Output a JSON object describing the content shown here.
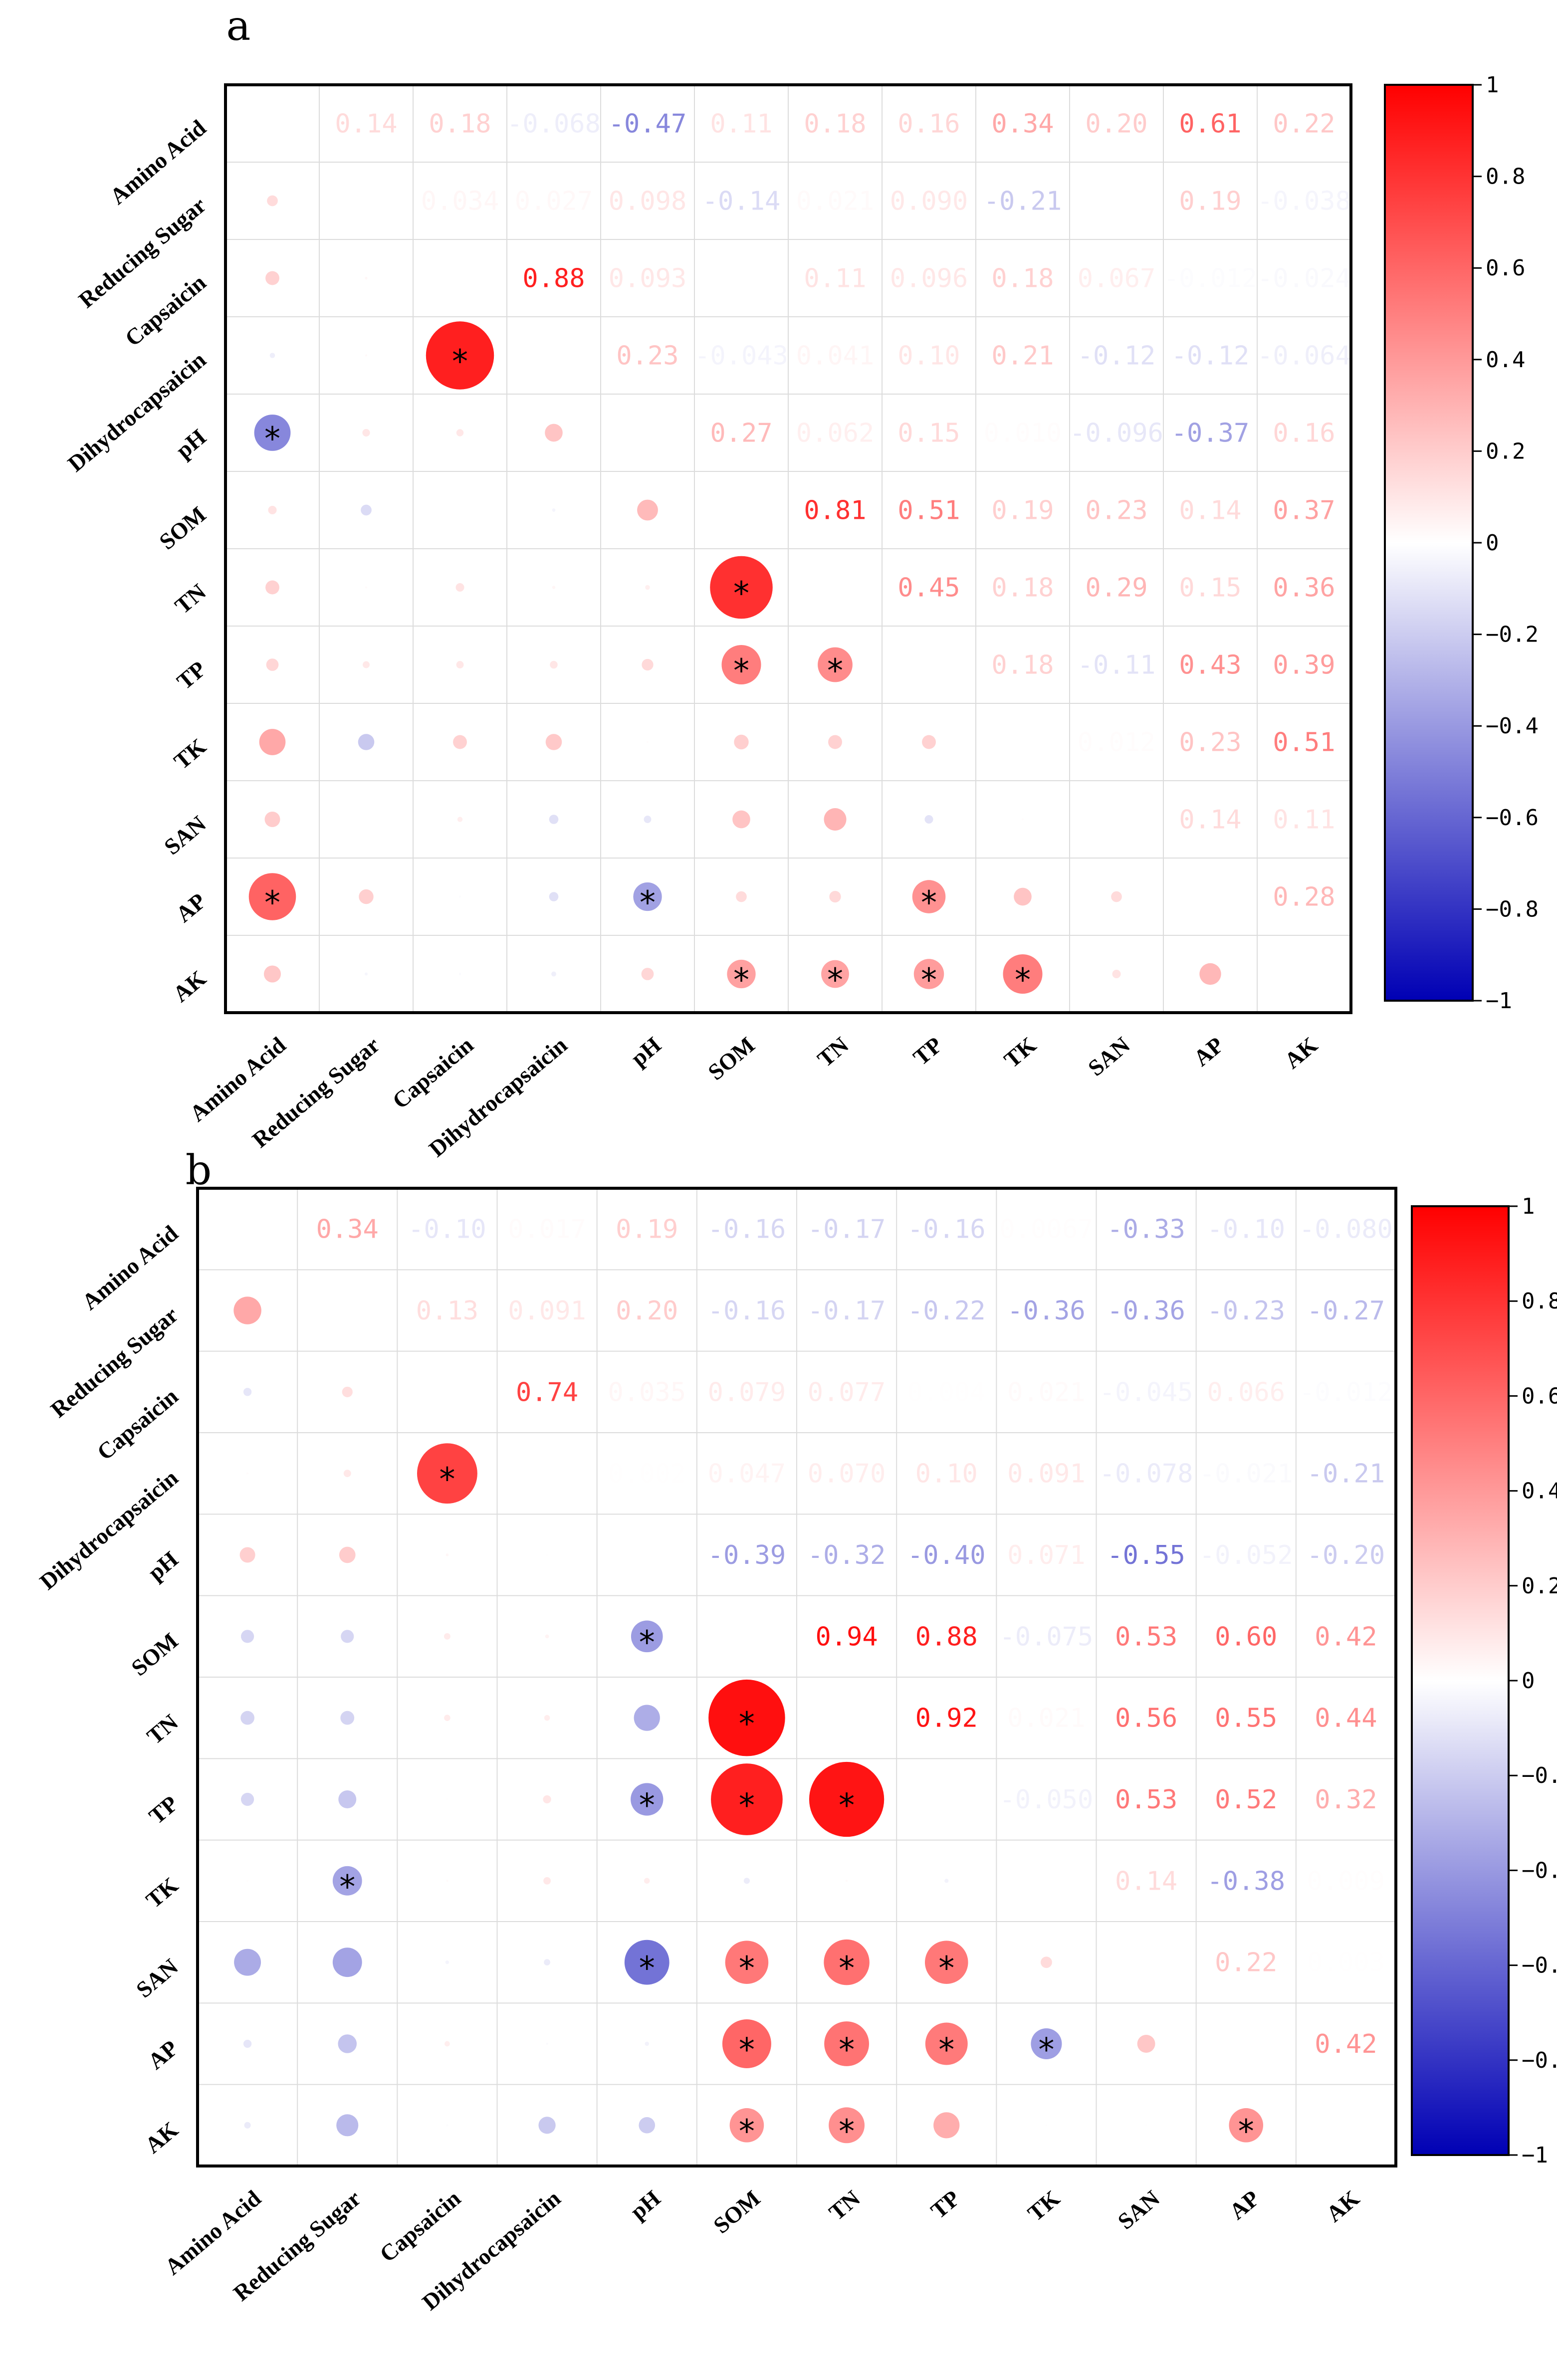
{
  "chart_data": [
    {
      "type": "heatmap",
      "panel_label": "a",
      "variables": [
        "Amino Acid",
        "Reducing Sugar",
        "Capsaicin",
        "Dihydrocapsaicin",
        "pH",
        "SOM",
        "TN",
        "TP",
        "TK",
        "SAN",
        "AP",
        "AK"
      ],
      "x_tick_labels": [
        "Amino Acid",
        "Reducing Sugar",
        "Capsaicin",
        "Dihydrocapsaicin",
        "pH",
        "SOM",
        "TN",
        "TP",
        "TK",
        "SAN",
        "AP",
        "AK"
      ],
      "y_tick_labels": [
        "Amino Acid",
        "Reducing Sugar",
        "Capsaicin",
        "Dihydrocapsaicin",
        "pH",
        "SOM",
        "TN",
        "TP",
        "TK",
        "SAN",
        "AP",
        "AK"
      ],
      "upper_labels": [
        [
          "",
          "0.14",
          "0.18",
          "-0.068",
          "-0.47",
          "0.11",
          "0.18",
          "0.16",
          "0.34",
          "0.20",
          "0.61",
          "0.22"
        ],
        [
          "",
          "",
          "0.034",
          "0.027",
          "0.098",
          "-0.14",
          "0.021",
          "0.090",
          "-0.21",
          "",
          "0.19",
          "-0.038"
        ],
        [
          "",
          "",
          "",
          "0.88",
          "0.093",
          "",
          "0.11",
          "0.096",
          "0.18",
          "0.067",
          "-0.012",
          "-0.024"
        ],
        [
          "",
          "",
          "",
          "",
          "0.23",
          "-0.043",
          "0.041",
          "0.10",
          "0.21",
          "-0.12",
          "-0.12",
          "-0.064"
        ],
        [
          "",
          "",
          "",
          "",
          "",
          "0.27",
          "0.062",
          "0.15",
          "0.010",
          "-0.096",
          "-0.37",
          "0.16"
        ],
        [
          "",
          "",
          "",
          "",
          "",
          "",
          "0.81",
          "0.51",
          "0.19",
          "0.23",
          "0.14",
          "0.37"
        ],
        [
          "",
          "",
          "",
          "",
          "",
          "",
          "",
          "0.45",
          "0.18",
          "0.29",
          "0.15",
          "0.36"
        ],
        [
          "",
          "",
          "",
          "",
          "",
          "",
          "",
          "",
          "0.18",
          "-0.11",
          "0.43",
          "0.39"
        ],
        [
          "",
          "",
          "",
          "",
          "",
          "",
          "",
          "",
          "",
          "0.012",
          "0.23",
          "0.51"
        ],
        [
          "",
          "",
          "",
          "",
          "",
          "",
          "",
          "",
          "",
          "",
          "0.14",
          "0.11"
        ],
        [
          "",
          "",
          "",
          "",
          "",
          "",
          "",
          "",
          "",
          "",
          "",
          "0.28"
        ],
        [
          "",
          "",
          "",
          "",
          "",
          "",
          "",
          "",
          "",
          "",
          "",
          ""
        ]
      ],
      "matrix": [
        [
          1,
          0.14,
          0.18,
          -0.068,
          -0.47,
          0.11,
          0.18,
          0.16,
          0.34,
          0.2,
          0.61,
          0.22
        ],
        [
          0.14,
          1,
          0.034,
          0.027,
          0.098,
          -0.14,
          0.021,
          0.09,
          -0.21,
          0.0,
          0.19,
          -0.038
        ],
        [
          0.18,
          0.034,
          1,
          0.88,
          0.093,
          0.0,
          0.11,
          0.096,
          0.18,
          0.067,
          -0.012,
          -0.024
        ],
        [
          -0.068,
          0.027,
          0.88,
          1,
          0.23,
          -0.043,
          0.041,
          0.1,
          0.21,
          -0.12,
          -0.12,
          -0.064
        ],
        [
          -0.47,
          0.098,
          0.093,
          0.23,
          1,
          0.27,
          0.062,
          0.15,
          0.01,
          -0.096,
          -0.37,
          0.16
        ],
        [
          0.11,
          -0.14,
          0.0,
          -0.043,
          0.27,
          1,
          0.81,
          0.51,
          0.19,
          0.23,
          0.14,
          0.37
        ],
        [
          0.18,
          0.021,
          0.11,
          0.041,
          0.062,
          0.81,
          1,
          0.45,
          0.18,
          0.29,
          0.15,
          0.36
        ],
        [
          0.16,
          0.09,
          0.096,
          0.1,
          0.15,
          0.51,
          0.45,
          1,
          0.18,
          -0.11,
          0.43,
          0.39
        ],
        [
          0.34,
          -0.21,
          0.18,
          0.21,
          0.01,
          0.19,
          0.18,
          0.18,
          1,
          0.012,
          0.23,
          0.51
        ],
        [
          0.2,
          0.0,
          0.067,
          -0.12,
          -0.096,
          0.23,
          0.29,
          -0.11,
          0.012,
          1,
          0.14,
          0.11
        ],
        [
          0.61,
          0.19,
          -0.012,
          -0.12,
          -0.37,
          0.14,
          0.15,
          0.43,
          0.23,
          0.14,
          1,
          0.28
        ],
        [
          0.22,
          -0.038,
          -0.024,
          -0.064,
          0.16,
          0.37,
          0.36,
          0.39,
          0.51,
          0.11,
          0.28,
          1
        ]
      ],
      "significant": [
        [
          4,
          0
        ],
        [
          3,
          2
        ],
        [
          6,
          5
        ],
        [
          7,
          5
        ],
        [
          7,
          6
        ],
        [
          10,
          0
        ],
        [
          10,
          4
        ],
        [
          10,
          7
        ],
        [
          11,
          5
        ],
        [
          11,
          6
        ],
        [
          11,
          7
        ],
        [
          11,
          8
        ]
      ],
      "significance_marker": "*",
      "colorbar": {
        "range": [
          -1,
          1
        ],
        "ticks": [
          "1",
          "0.8",
          "0.6",
          "0.4",
          "0.2",
          "0",
          "−0.2",
          "−0.4",
          "−0.6",
          "−0.8",
          "−1"
        ],
        "colors": [
          "#0000b4",
          "#ffffff",
          "#ff0000"
        ]
      }
    },
    {
      "type": "heatmap",
      "panel_label": "b",
      "variables": [
        "Amino Acid",
        "Reducing Sugar",
        "Capsaicin",
        "Dihydrocapsaicin",
        "pH",
        "SOM",
        "TN",
        "TP",
        "TK",
        "SAN",
        "AP",
        "AK"
      ],
      "x_tick_labels": [
        "Amino Acid",
        "Reducing Sugar",
        "Capsaicin",
        "Dihydrocapsaicin",
        "pH",
        "SOM",
        "TN",
        "TP",
        "TK",
        "SAN",
        "AP",
        "AK"
      ],
      "y_tick_labels": [
        "Amino Acid",
        "Reducing Sugar",
        "Capsaicin",
        "Dihydrocapsaicin",
        "pH",
        "SOM",
        "TN",
        "TP",
        "TK",
        "SAN",
        "AP",
        "AK"
      ],
      "upper_labels": [
        [
          "",
          "0.34",
          "-0.10",
          "0.017",
          "0.19",
          "-0.16",
          "-0.17",
          "-0.16",
          "0.0067",
          "-0.33",
          "-0.10",
          "-0.080"
        ],
        [
          "",
          "",
          "0.13",
          "0.091",
          "0.20",
          "-0.16",
          "-0.17",
          "-0.22",
          "-0.36",
          "-0.36",
          "-0.23",
          "-0.27"
        ],
        [
          "",
          "",
          "",
          "0.74",
          "0.035",
          "0.079",
          "0.077",
          "0.004",
          "0.021",
          "-0.045",
          "0.066",
          "-0.012"
        ],
        [
          "",
          "",
          "",
          "",
          "0.002",
          "0.047",
          "0.070",
          "0.10",
          "0.091",
          "-0.078",
          "-0.021",
          "-0.21"
        ],
        [
          "",
          "",
          "",
          "",
          "",
          "-0.39",
          "-0.32",
          "-0.40",
          "0.071",
          "-0.55",
          "-0.052",
          "-0.20"
        ],
        [
          "",
          "",
          "",
          "",
          "",
          "",
          "0.94",
          "0.88",
          "-0.075",
          "0.53",
          "0.60",
          "0.42"
        ],
        [
          "",
          "",
          "",
          "",
          "",
          "",
          "",
          "0.92",
          "0.021",
          "0.56",
          "0.55",
          "0.44"
        ],
        [
          "",
          "",
          "",
          "",
          "",
          "",
          "",
          "",
          "-0.050",
          "0.53",
          "0.52",
          "0.32"
        ],
        [
          "",
          "",
          "",
          "",
          "",
          "",
          "",
          "",
          "",
          "0.14",
          "-0.38",
          "0.009"
        ],
        [
          "",
          "",
          "",
          "",
          "",
          "",
          "",
          "",
          "",
          "",
          "0.22",
          "0.003"
        ],
        [
          "",
          "",
          "",
          "",
          "",
          "",
          "",
          "",
          "",
          "",
          "",
          "0.42"
        ],
        [
          "",
          "",
          "",
          "",
          "",
          "",
          "",
          "",
          "",
          "",
          "",
          ""
        ]
      ],
      "matrix": [
        [
          1,
          0.34,
          -0.1,
          0.017,
          0.19,
          -0.16,
          -0.17,
          -0.16,
          0.0067,
          -0.33,
          -0.1,
          -0.08
        ],
        [
          0.34,
          1,
          0.13,
          0.091,
          0.2,
          -0.16,
          -0.17,
          -0.22,
          -0.36,
          -0.36,
          -0.23,
          -0.27
        ],
        [
          -0.1,
          0.13,
          1,
          0.74,
          0.035,
          0.079,
          0.077,
          0.004,
          0.021,
          -0.045,
          0.066,
          -0.012
        ],
        [
          0.017,
          0.091,
          0.74,
          1,
          0.002,
          0.047,
          0.07,
          0.1,
          0.091,
          -0.078,
          -0.021,
          -0.21
        ],
        [
          0.19,
          0.2,
          0.035,
          0.002,
          1,
          -0.39,
          -0.32,
          -0.4,
          0.071,
          -0.55,
          -0.052,
          -0.2
        ],
        [
          -0.16,
          -0.16,
          0.079,
          0.047,
          -0.39,
          1,
          0.94,
          0.88,
          -0.075,
          0.53,
          0.6,
          0.42
        ],
        [
          -0.17,
          -0.17,
          0.077,
          0.07,
          -0.32,
          0.94,
          1,
          0.92,
          0.021,
          0.56,
          0.55,
          0.44
        ],
        [
          -0.16,
          -0.22,
          0.004,
          0.1,
          -0.4,
          0.88,
          0.92,
          1,
          -0.05,
          0.53,
          0.52,
          0.32
        ],
        [
          0.0067,
          -0.36,
          0.021,
          0.091,
          0.071,
          -0.075,
          0.021,
          -0.05,
          1,
          0.14,
          -0.38,
          0.009
        ],
        [
          -0.33,
          -0.36,
          -0.045,
          -0.078,
          -0.55,
          0.53,
          0.56,
          0.53,
          0.14,
          1,
          0.22,
          0.003
        ],
        [
          -0.1,
          -0.23,
          0.066,
          -0.021,
          -0.052,
          0.6,
          0.55,
          0.52,
          -0.38,
          0.22,
          1,
          0.42
        ],
        [
          -0.08,
          -0.27,
          -0.012,
          -0.21,
          -0.2,
          0.42,
          0.44,
          0.32,
          0.009,
          0.003,
          0.42,
          1
        ]
      ],
      "significant": [
        [
          3,
          2
        ],
        [
          5,
          4
        ],
        [
          6,
          5
        ],
        [
          7,
          4
        ],
        [
          7,
          5
        ],
        [
          7,
          6
        ],
        [
          8,
          1
        ],
        [
          9,
          4
        ],
        [
          9,
          5
        ],
        [
          9,
          6
        ],
        [
          9,
          7
        ],
        [
          10,
          5
        ],
        [
          10,
          6
        ],
        [
          10,
          7
        ],
        [
          10,
          8
        ],
        [
          11,
          5
        ],
        [
          11,
          6
        ],
        [
          11,
          10
        ]
      ],
      "significance_marker": "*",
      "colorbar": {
        "range": [
          -1,
          1
        ],
        "ticks": [
          "1",
          "0.8",
          "0.6",
          "0.4",
          "0.2",
          "0",
          "−0.2",
          "−0.4",
          "−0.6",
          "−0.8",
          "−1"
        ],
        "colors": [
          "#0000b4",
          "#ffffff",
          "#ff0000"
        ]
      }
    }
  ]
}
